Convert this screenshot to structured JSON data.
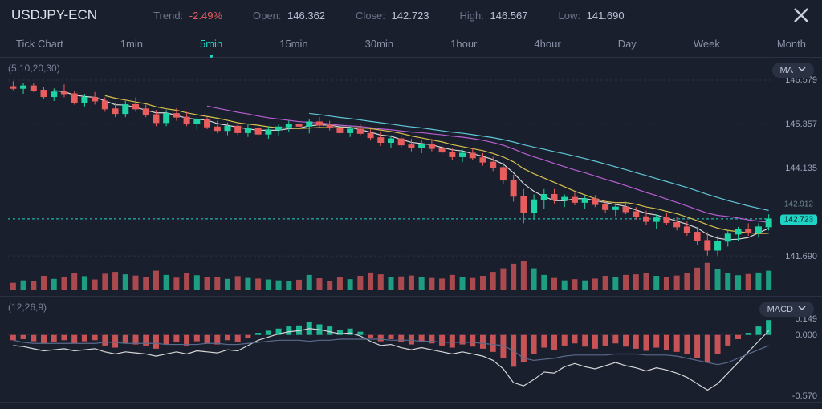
{
  "header": {
    "symbol": "USDJPY-ECN",
    "trend_label": "Trend:",
    "trend_value": "-2.49%",
    "open_label": "Open:",
    "open_value": "146.362",
    "close_label": "Close:",
    "close_value": "142.723",
    "high_label": "High:",
    "high_value": "146.567",
    "low_label": "Low:",
    "low_value": "141.690"
  },
  "timeframes": {
    "items": [
      "Tick Chart",
      "1min",
      "5min",
      "15min",
      "30min",
      "1hour",
      "4hour",
      "Day",
      "Week",
      "Month"
    ],
    "active_index": 2
  },
  "main_chart": {
    "type": "candlestick",
    "ma_label": "(5,10,20,30)",
    "indicator_badge": "MA",
    "y_min": 141.69,
    "y_max": 146.579,
    "y_ticks": [
      146.579,
      145.357,
      144.135,
      142.723,
      141.69
    ],
    "current_price": 142.723,
    "hover_price": 142.912,
    "grid_color": "#2a3142",
    "bg_color": "#1a1f2e",
    "ma_colors": {
      "ma5": "#d6d6d6",
      "ma10": "#d8c24a",
      "ma20": "#b95fd1",
      "ma30": "#5ec7d6"
    },
    "up_color": "#1fd4a4",
    "down_color": "#e85d5d",
    "candles": [
      {
        "o": 146.4,
        "h": 146.55,
        "l": 146.3,
        "c": 146.35,
        "v": 0.22,
        "d": 1
      },
      {
        "o": 146.35,
        "h": 146.5,
        "l": 146.2,
        "c": 146.42,
        "v": 0.3,
        "d": 0
      },
      {
        "o": 146.42,
        "h": 146.5,
        "l": 146.25,
        "c": 146.3,
        "v": 0.28,
        "d": 1
      },
      {
        "o": 146.3,
        "h": 146.4,
        "l": 146.05,
        "c": 146.12,
        "v": 0.45,
        "d": 1
      },
      {
        "o": 146.12,
        "h": 146.35,
        "l": 146.0,
        "c": 146.25,
        "v": 0.35,
        "d": 0
      },
      {
        "o": 146.25,
        "h": 146.46,
        "l": 146.1,
        "c": 146.2,
        "v": 0.4,
        "d": 1
      },
      {
        "o": 146.2,
        "h": 146.28,
        "l": 145.9,
        "c": 145.95,
        "v": 0.55,
        "d": 1
      },
      {
        "o": 145.95,
        "h": 146.2,
        "l": 145.85,
        "c": 146.1,
        "v": 0.44,
        "d": 0
      },
      {
        "o": 146.1,
        "h": 146.25,
        "l": 145.9,
        "c": 146.0,
        "v": 0.33,
        "d": 1
      },
      {
        "o": 146.0,
        "h": 146.1,
        "l": 145.7,
        "c": 145.78,
        "v": 0.52,
        "d": 1
      },
      {
        "o": 145.78,
        "h": 145.95,
        "l": 145.55,
        "c": 145.65,
        "v": 0.58,
        "d": 1
      },
      {
        "o": 145.65,
        "h": 146.0,
        "l": 145.55,
        "c": 145.9,
        "v": 0.5,
        "d": 0
      },
      {
        "o": 145.9,
        "h": 146.1,
        "l": 145.7,
        "c": 145.78,
        "v": 0.46,
        "d": 1
      },
      {
        "o": 145.78,
        "h": 145.9,
        "l": 145.55,
        "c": 145.62,
        "v": 0.42,
        "d": 1
      },
      {
        "o": 145.62,
        "h": 145.75,
        "l": 145.3,
        "c": 145.4,
        "v": 0.62,
        "d": 1
      },
      {
        "o": 145.4,
        "h": 145.75,
        "l": 145.3,
        "c": 145.65,
        "v": 0.48,
        "d": 0
      },
      {
        "o": 145.65,
        "h": 145.8,
        "l": 145.45,
        "c": 145.55,
        "v": 0.39,
        "d": 1
      },
      {
        "o": 145.55,
        "h": 145.7,
        "l": 145.3,
        "c": 145.38,
        "v": 0.55,
        "d": 1
      },
      {
        "o": 145.38,
        "h": 145.55,
        "l": 145.2,
        "c": 145.48,
        "v": 0.47,
        "d": 0
      },
      {
        "o": 145.48,
        "h": 145.55,
        "l": 145.22,
        "c": 145.28,
        "v": 0.4,
        "d": 1
      },
      {
        "o": 145.28,
        "h": 145.45,
        "l": 145.1,
        "c": 145.18,
        "v": 0.42,
        "d": 1
      },
      {
        "o": 145.18,
        "h": 145.4,
        "l": 145.05,
        "c": 145.3,
        "v": 0.35,
        "d": 0
      },
      {
        "o": 145.3,
        "h": 145.42,
        "l": 145.05,
        "c": 145.12,
        "v": 0.44,
        "d": 1
      },
      {
        "o": 145.12,
        "h": 145.35,
        "l": 145.0,
        "c": 145.25,
        "v": 0.38,
        "d": 0
      },
      {
        "o": 145.25,
        "h": 145.35,
        "l": 145.0,
        "c": 145.08,
        "v": 0.36,
        "d": 1
      },
      {
        "o": 145.08,
        "h": 145.3,
        "l": 144.95,
        "c": 145.2,
        "v": 0.33,
        "d": 0
      },
      {
        "o": 145.2,
        "h": 145.35,
        "l": 145.05,
        "c": 145.28,
        "v": 0.3,
        "d": 0
      },
      {
        "o": 145.28,
        "h": 145.45,
        "l": 145.15,
        "c": 145.35,
        "v": 0.28,
        "d": 0
      },
      {
        "o": 145.35,
        "h": 145.5,
        "l": 145.2,
        "c": 145.3,
        "v": 0.32,
        "d": 1
      },
      {
        "o": 145.3,
        "h": 145.5,
        "l": 145.1,
        "c": 145.42,
        "v": 0.48,
        "d": 0
      },
      {
        "o": 145.42,
        "h": 145.55,
        "l": 145.25,
        "c": 145.33,
        "v": 0.37,
        "d": 1
      },
      {
        "o": 145.33,
        "h": 145.45,
        "l": 145.18,
        "c": 145.25,
        "v": 0.29,
        "d": 1
      },
      {
        "o": 145.25,
        "h": 145.35,
        "l": 145.05,
        "c": 145.12,
        "v": 0.41,
        "d": 1
      },
      {
        "o": 145.12,
        "h": 145.3,
        "l": 145.0,
        "c": 145.22,
        "v": 0.34,
        "d": 0
      },
      {
        "o": 145.22,
        "h": 145.35,
        "l": 145.05,
        "c": 145.1,
        "v": 0.45,
        "d": 1
      },
      {
        "o": 145.1,
        "h": 145.22,
        "l": 144.9,
        "c": 144.98,
        "v": 0.56,
        "d": 1
      },
      {
        "o": 144.98,
        "h": 145.15,
        "l": 144.75,
        "c": 144.85,
        "v": 0.5,
        "d": 1
      },
      {
        "o": 144.85,
        "h": 145.05,
        "l": 144.7,
        "c": 144.95,
        "v": 0.4,
        "d": 0
      },
      {
        "o": 144.95,
        "h": 145.05,
        "l": 144.7,
        "c": 144.78,
        "v": 0.43,
        "d": 1
      },
      {
        "o": 144.78,
        "h": 144.95,
        "l": 144.6,
        "c": 144.7,
        "v": 0.46,
        "d": 1
      },
      {
        "o": 144.7,
        "h": 144.9,
        "l": 144.55,
        "c": 144.8,
        "v": 0.42,
        "d": 0
      },
      {
        "o": 144.8,
        "h": 144.95,
        "l": 144.6,
        "c": 144.68,
        "v": 0.38,
        "d": 1
      },
      {
        "o": 144.68,
        "h": 144.8,
        "l": 144.5,
        "c": 144.58,
        "v": 0.36,
        "d": 1
      },
      {
        "o": 144.58,
        "h": 144.7,
        "l": 144.35,
        "c": 144.45,
        "v": 0.48,
        "d": 1
      },
      {
        "o": 144.45,
        "h": 144.65,
        "l": 144.3,
        "c": 144.55,
        "v": 0.4,
        "d": 0
      },
      {
        "o": 144.55,
        "h": 144.68,
        "l": 144.35,
        "c": 144.42,
        "v": 0.38,
        "d": 1
      },
      {
        "o": 144.42,
        "h": 144.55,
        "l": 144.2,
        "c": 144.3,
        "v": 0.45,
        "d": 1
      },
      {
        "o": 144.3,
        "h": 144.45,
        "l": 144.05,
        "c": 144.15,
        "v": 0.58,
        "d": 1
      },
      {
        "o": 144.15,
        "h": 144.3,
        "l": 143.7,
        "c": 143.8,
        "v": 0.7,
        "d": 1
      },
      {
        "o": 143.8,
        "h": 143.95,
        "l": 143.2,
        "c": 143.35,
        "v": 0.85,
        "d": 1
      },
      {
        "o": 143.35,
        "h": 143.55,
        "l": 142.6,
        "c": 142.9,
        "v": 0.95,
        "d": 1
      },
      {
        "o": 142.9,
        "h": 143.4,
        "l": 142.7,
        "c": 143.25,
        "v": 0.7,
        "d": 0
      },
      {
        "o": 143.25,
        "h": 143.55,
        "l": 143.0,
        "c": 143.4,
        "v": 0.48,
        "d": 0
      },
      {
        "o": 143.4,
        "h": 143.55,
        "l": 143.15,
        "c": 143.25,
        "v": 0.38,
        "d": 1
      },
      {
        "o": 143.25,
        "h": 143.4,
        "l": 143.05,
        "c": 143.32,
        "v": 0.3,
        "d": 0
      },
      {
        "o": 143.32,
        "h": 143.45,
        "l": 143.1,
        "c": 143.18,
        "v": 0.34,
        "d": 1
      },
      {
        "o": 143.18,
        "h": 143.35,
        "l": 143.0,
        "c": 143.28,
        "v": 0.3,
        "d": 0
      },
      {
        "o": 143.28,
        "h": 143.38,
        "l": 143.05,
        "c": 143.12,
        "v": 0.36,
        "d": 1
      },
      {
        "o": 143.12,
        "h": 143.25,
        "l": 142.9,
        "c": 142.98,
        "v": 0.45,
        "d": 1
      },
      {
        "o": 142.98,
        "h": 143.15,
        "l": 142.8,
        "c": 143.05,
        "v": 0.4,
        "d": 0
      },
      {
        "o": 143.05,
        "h": 143.2,
        "l": 142.85,
        "c": 142.92,
        "v": 0.48,
        "d": 1
      },
      {
        "o": 142.92,
        "h": 143.05,
        "l": 142.7,
        "c": 142.78,
        "v": 0.5,
        "d": 1
      },
      {
        "o": 142.78,
        "h": 142.95,
        "l": 142.55,
        "c": 142.65,
        "v": 0.55,
        "d": 1
      },
      {
        "o": 142.65,
        "h": 142.85,
        "l": 142.45,
        "c": 142.75,
        "v": 0.45,
        "d": 0
      },
      {
        "o": 142.75,
        "h": 142.88,
        "l": 142.55,
        "c": 142.62,
        "v": 0.4,
        "d": 1
      },
      {
        "o": 142.62,
        "h": 142.78,
        "l": 142.4,
        "c": 142.5,
        "v": 0.46,
        "d": 1
      },
      {
        "o": 142.5,
        "h": 142.65,
        "l": 142.25,
        "c": 142.35,
        "v": 0.55,
        "d": 1
      },
      {
        "o": 142.35,
        "h": 142.5,
        "l": 142.0,
        "c": 142.12,
        "v": 0.72,
        "d": 1
      },
      {
        "o": 142.12,
        "h": 142.35,
        "l": 141.7,
        "c": 141.85,
        "v": 0.88,
        "d": 1
      },
      {
        "o": 141.85,
        "h": 142.25,
        "l": 141.7,
        "c": 142.1,
        "v": 0.68,
        "d": 0
      },
      {
        "o": 142.1,
        "h": 142.4,
        "l": 141.95,
        "c": 142.3,
        "v": 0.54,
        "d": 0
      },
      {
        "o": 142.3,
        "h": 142.5,
        "l": 142.1,
        "c": 142.42,
        "v": 0.47,
        "d": 0
      },
      {
        "o": 142.42,
        "h": 142.6,
        "l": 142.25,
        "c": 142.35,
        "v": 0.51,
        "d": 1
      },
      {
        "o": 142.35,
        "h": 142.6,
        "l": 142.2,
        "c": 142.5,
        "v": 0.56,
        "d": 0
      },
      {
        "o": 142.5,
        "h": 142.85,
        "l": 142.4,
        "c": 142.72,
        "v": 0.62,
        "d": 0
      }
    ]
  },
  "macd_chart": {
    "type": "macd",
    "label": "(12,26,9)",
    "indicator_badge": "MACD",
    "y_min": -0.57,
    "y_max": 0.149,
    "y_ticks": [
      0.149,
      0.0,
      -0.57
    ],
    "macd_color": "#d6d6d6",
    "signal_color": "#5a6a8a",
    "up_color": "#1fd4a4",
    "down_color": "#e85d5d",
    "hist": [
      -0.05,
      -0.04,
      -0.06,
      -0.08,
      -0.07,
      -0.05,
      -0.08,
      -0.06,
      -0.05,
      -0.1,
      -0.12,
      -0.08,
      -0.09,
      -0.1,
      -0.13,
      -0.09,
      -0.07,
      -0.1,
      -0.06,
      -0.08,
      -0.09,
      -0.05,
      -0.07,
      -0.03,
      0.02,
      0.04,
      0.06,
      0.08,
      0.09,
      0.12,
      0.1,
      0.08,
      0.05,
      0.06,
      0.03,
      -0.03,
      -0.06,
      -0.04,
      -0.07,
      -0.09,
      -0.06,
      -0.08,
      -0.1,
      -0.12,
      -0.09,
      -0.11,
      -0.13,
      -0.16,
      -0.22,
      -0.3,
      -0.26,
      -0.18,
      -0.12,
      -0.14,
      -0.1,
      -0.08,
      -0.11,
      -0.13,
      -0.1,
      -0.08,
      -0.11,
      -0.13,
      -0.15,
      -0.12,
      -0.14,
      -0.16,
      -0.18,
      -0.22,
      -0.26,
      -0.18,
      -0.1,
      -0.04,
      0.02,
      0.08,
      0.14
    ],
    "macd_line": [
      -0.1,
      -0.11,
      -0.13,
      -0.15,
      -0.14,
      -0.13,
      -0.15,
      -0.14,
      -0.13,
      -0.16,
      -0.18,
      -0.16,
      -0.17,
      -0.18,
      -0.2,
      -0.18,
      -0.16,
      -0.18,
      -0.15,
      -0.16,
      -0.17,
      -0.14,
      -0.15,
      -0.1,
      -0.05,
      -0.02,
      0.01,
      0.03,
      0.04,
      0.06,
      0.05,
      0.03,
      0.01,
      0.02,
      -0.01,
      -0.06,
      -0.1,
      -0.09,
      -0.12,
      -0.14,
      -0.12,
      -0.14,
      -0.16,
      -0.18,
      -0.16,
      -0.18,
      -0.2,
      -0.24,
      -0.32,
      -0.45,
      -0.48,
      -0.42,
      -0.35,
      -0.36,
      -0.3,
      -0.27,
      -0.3,
      -0.32,
      -0.29,
      -0.26,
      -0.29,
      -0.31,
      -0.34,
      -0.31,
      -0.33,
      -0.36,
      -0.4,
      -0.46,
      -0.52,
      -0.46,
      -0.36,
      -0.26,
      -0.16,
      -0.06,
      0.04
    ],
    "signal_line": [
      -0.05,
      -0.07,
      -0.08,
      -0.08,
      -0.08,
      -0.08,
      -0.08,
      -0.08,
      -0.08,
      -0.07,
      -0.07,
      -0.08,
      -0.08,
      -0.08,
      -0.08,
      -0.09,
      -0.09,
      -0.09,
      -0.09,
      -0.08,
      -0.08,
      -0.09,
      -0.09,
      -0.08,
      -0.07,
      -0.06,
      -0.05,
      -0.05,
      -0.05,
      -0.06,
      -0.05,
      -0.05,
      -0.04,
      -0.04,
      -0.04,
      -0.04,
      -0.04,
      -0.05,
      -0.05,
      -0.05,
      -0.06,
      -0.06,
      -0.07,
      -0.07,
      -0.07,
      -0.07,
      -0.08,
      -0.09,
      -0.1,
      -0.15,
      -0.22,
      -0.24,
      -0.23,
      -0.22,
      -0.2,
      -0.19,
      -0.19,
      -0.19,
      -0.19,
      -0.18,
      -0.18,
      -0.18,
      -0.19,
      -0.19,
      -0.19,
      -0.2,
      -0.22,
      -0.24,
      -0.26,
      -0.28,
      -0.26,
      -0.22,
      -0.18,
      -0.14,
      -0.1
    ]
  }
}
